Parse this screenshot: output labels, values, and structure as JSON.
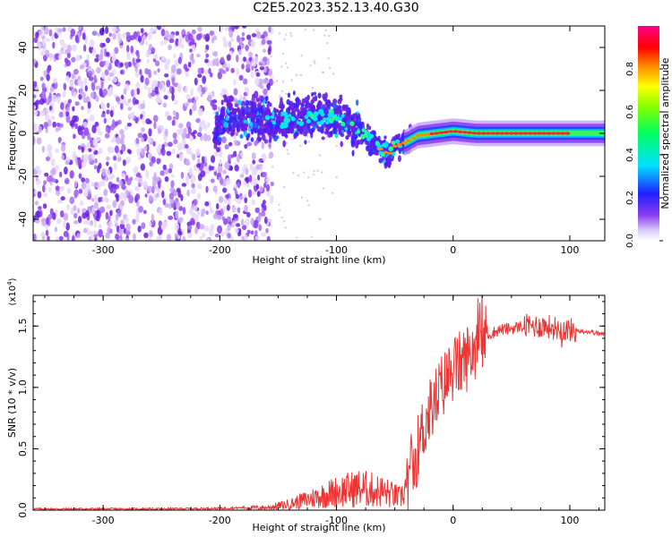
{
  "title": "C2E5.2023.352.13.40.G30",
  "colors": {
    "snr_line": "#ee3333",
    "axis": "#000000",
    "spec_dots": "#6a1fe0"
  },
  "chart_data": [
    {
      "type": "heatmap",
      "xlabel": "Height of straight line (km)",
      "ylabel": "Frequency (Hz)",
      "xlim": [
        -360,
        130
      ],
      "ylim": [
        -50,
        50
      ],
      "x_ticks": [
        -300,
        -200,
        -100,
        0,
        100
      ],
      "y_ticks": [
        -40,
        -20,
        0,
        20,
        40
      ],
      "colorbar": {
        "label": "Normalized spectral amplitude",
        "range": [
          0,
          1
        ],
        "ticks": [
          "0.0",
          "0.2",
          "0.4",
          "0.6",
          "0.8"
        ],
        "colormap": "rainbow (violet → blue → cyan → green → yellow → red → magenta)"
      },
      "center_frequency_track": [
        {
          "x": -200,
          "y": 8
        },
        {
          "x": -150,
          "y": 6
        },
        {
          "x": -120,
          "y": 8
        },
        {
          "x": -100,
          "y": 7
        },
        {
          "x": -80,
          "y": 2
        },
        {
          "x": -65,
          "y": -6
        },
        {
          "x": -55,
          "y": -10
        },
        {
          "x": -50,
          "y": -6
        },
        {
          "x": -40,
          "y": -4
        },
        {
          "x": -30,
          "y": -1
        },
        {
          "x": -15,
          "y": 0
        },
        {
          "x": 0,
          "y": 1
        },
        {
          "x": 20,
          "y": 0
        },
        {
          "x": 50,
          "y": 0
        },
        {
          "x": 100,
          "y": 0
        },
        {
          "x": 130,
          "y": 0
        }
      ]
    },
    {
      "type": "line",
      "xlabel": "Height of straight line (km)",
      "ylabel": "SNR (10 * v/v)",
      "y_multiplier": "(x10",
      "y_multiplier_exp": "4",
      "xlim": [
        -360,
        130
      ],
      "ylim": [
        0,
        1.75
      ],
      "x_ticks": [
        -300,
        -200,
        -100,
        0,
        100
      ],
      "y_ticks": [
        "0.0",
        "0.5",
        "1.0",
        "1.5"
      ],
      "series": [
        {
          "x": [
            -360,
            -300,
            -250,
            -200,
            -180,
            -160,
            -140,
            -120,
            -100,
            -80,
            -60,
            -45,
            -35,
            -28,
            -20,
            -10,
            0,
            10,
            20,
            30,
            40,
            50,
            60,
            70,
            80,
            90,
            100,
            110,
            120,
            130
          ],
          "y": [
            0.01,
            0.01,
            0.01,
            0.015,
            0.02,
            0.02,
            0.05,
            0.1,
            0.15,
            0.18,
            0.15,
            0.1,
            0.3,
            0.6,
            0.8,
            1.0,
            1.15,
            1.22,
            1.35,
            1.43,
            1.47,
            1.48,
            1.5,
            1.5,
            1.5,
            1.48,
            1.47,
            1.46,
            1.45,
            1.43
          ]
        }
      ]
    }
  ]
}
